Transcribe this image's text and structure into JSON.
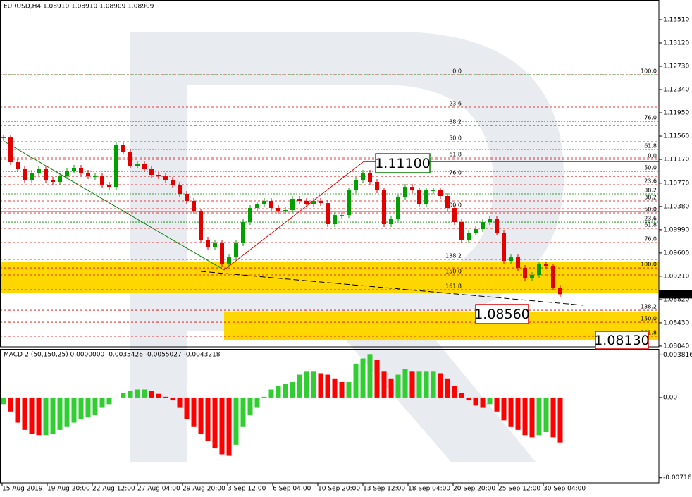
{
  "chart_data": [
    {
      "type": "candlestick",
      "title": "EURUSD,H4  1.08910 1.08910 1.08909 1.08909",
      "closes": [
        1.11536,
        1.11123,
        1.11005,
        1.10827,
        1.10946,
        1.11005,
        1.10827,
        1.10792,
        1.10886,
        1.10981,
        1.11028,
        1.10946,
        1.10886,
        1.10886,
        1.10745,
        1.10709,
        1.11418,
        1.113,
        1.11064,
        1.11099,
        1.11005,
        1.1091,
        1.10886,
        1.10827,
        1.10745,
        1.10591,
        1.10473,
        1.10296,
        1.09823,
        1.09705,
        1.09764,
        1.09409,
        1.09527,
        1.09764,
        1.10118,
        1.10355,
        1.10414,
        1.10473,
        1.10355,
        1.10296,
        1.10319,
        1.10508,
        1.10473,
        1.10414,
        1.10473,
        1.10437,
        1.10083,
        1.10236,
        1.10236,
        1.1065,
        1.10827,
        1.10946,
        1.10792,
        1.1065,
        1.10083,
        1.10177,
        1.10532,
        1.10709,
        1.1065,
        1.10414,
        1.1065,
        1.1065,
        1.10556,
        1.10355,
        1.10118,
        1.09823,
        1.09941,
        1.1,
        1.10118,
        1.10177,
        1.09941,
        1.09468,
        1.09527,
        1.0935,
        1.09173,
        1.09232,
        1.09409,
        1.09374,
        1.09019,
        1.08909
      ],
      "up_color": "#00a000",
      "down_color": "#e00000",
      "ylim": [
        1.08027,
        1.13841
      ],
      "yticks": [
        {
          "value": 1.1351,
          "label": "1.13510"
        },
        {
          "value": 1.1312,
          "label": "1.13120"
        },
        {
          "value": 1.1273,
          "label": "1.12730"
        },
        {
          "value": 1.1234,
          "label": "1.12340"
        },
        {
          "value": 1.1195,
          "label": "1.11950"
        },
        {
          "value": 1.1156,
          "label": "1.11560"
        },
        {
          "value": 1.1117,
          "label": "1.11170"
        },
        {
          "value": 1.1077,
          "label": "1.10770"
        },
        {
          "value": 1.1038,
          "label": "1.10380"
        },
        {
          "value": 1.0999,
          "label": "1.09990"
        },
        {
          "value": 1.096,
          "label": "1.09600"
        },
        {
          "value": 1.0921,
          "label": "1.09210"
        },
        {
          "value": 1.0882,
          "label": "1.08820"
        },
        {
          "value": 1.0843,
          "label": "1.08430"
        },
        {
          "value": 1.0804,
          "label": "1.08040"
        }
      ],
      "last_price": {
        "value": 1.08909,
        "label": "1.08909"
      },
      "zones": [
        {
          "low": 1.08925,
          "high": 1.09445,
          "color": "#ffd700"
        },
        {
          "low": 1.08133,
          "high": 1.08606,
          "color": "#ffd700"
        }
      ],
      "hlines": [
        {
          "price": 1.10296,
          "color": "#ffa500"
        },
        {
          "price": 1.11135,
          "color": "#1e78d2"
        }
      ],
      "fib_sets": [
        {
          "color": "#e00000",
          "levels": [
            {
              "label": "0.0",
              "price": 1.12588
            },
            {
              "label": "23.6",
              "price": 1.12045
            },
            {
              "label": "38.2",
              "price": 1.11737
            },
            {
              "label": "50.0",
              "price": 1.11466
            },
            {
              "label": "61.8",
              "price": 1.11194
            },
            {
              "label": "76.0",
              "price": 1.10886
            },
            {
              "label": "100.0",
              "price": 1.10343
            },
            {
              "label": "138.2",
              "price": 1.09492
            },
            {
              "label": "150.0",
              "price": 1.09232
            },
            {
              "label": "161.8",
              "price": 1.08984
            }
          ]
        },
        {
          "color": "#e00000",
          "levels": [
            {
              "label": "0.0",
              "price": 1.1117
            },
            {
              "label": "23.6",
              "price": 1.10745
            },
            {
              "label": "38.2",
              "price": 1.10473
            },
            {
              "label": "50.0",
              "price": 1.10272
            },
            {
              "label": "61.8",
              "price": 1.10012
            },
            {
              "label": "76.0",
              "price": 1.09776
            },
            {
              "label": "100.0",
              "price": 1.0935
            },
            {
              "label": "138.2",
              "price": 1.08641
            },
            {
              "label": "150.0",
              "price": 1.0844
            },
            {
              "label": "161.8",
              "price": 1.08204
            }
          ]
        },
        {
          "color": "#008000",
          "levels": [
            {
              "label": "100.0",
              "price": 1.12588
            },
            {
              "label": "76.0",
              "price": 1.11808
            },
            {
              "label": "61.8",
              "price": 1.11336
            },
            {
              "label": "50.0",
              "price": 1.10969
            },
            {
              "label": "38.2",
              "price": 1.10591
            },
            {
              "label": "23.6",
              "price": 1.10118
            }
          ]
        }
      ],
      "callouts": [
        {
          "label": "1.11100",
          "color": "#008000"
        },
        {
          "label": "1.08560",
          "color": "#e00000"
        },
        {
          "label": "1.08130",
          "color": "#e00000"
        }
      ]
    },
    {
      "type": "bar",
      "title": "MACD-2 (50,150,25) 0.0000000 -0.0035426 -0.0055027 -0.0043218",
      "values": [
        -0.00059,
        -0.00125,
        -0.00224,
        -0.00289,
        -0.00322,
        -0.00336,
        -0.00336,
        -0.00322,
        -0.00289,
        -0.00257,
        -0.00224,
        -0.00191,
        -0.00178,
        -0.00158,
        -0.00092,
        -0.00059,
        -7e-05,
        0.00039,
        0.00059,
        0.00072,
        0.00072,
        0.00059,
        0.00033,
        7e-05,
        -0.00026,
        -0.00092,
        -0.00191,
        -0.00257,
        -0.00322,
        -0.00388,
        -0.00454,
        -0.00507,
        -0.0052,
        -0.00421,
        -0.00257,
        -0.00158,
        -0.00092,
        7e-05,
        0.00072,
        0.00105,
        0.00125,
        0.00138,
        0.00204,
        0.00237,
        0.00237,
        0.00217,
        0.00204,
        0.00171,
        0.00138,
        0.00138,
        0.00303,
        0.00349,
        0.00388,
        0.00336,
        0.00237,
        0.00171,
        0.00204,
        0.00257,
        0.00237,
        0.00237,
        0.00237,
        0.00237,
        0.00217,
        0.00171,
        0.00105,
        0.00039,
        -0.00026,
        -0.00072,
        -0.00092,
        -0.00059,
        -0.00125,
        -0.00204,
        -0.00257,
        -0.00289,
        -0.00336,
        -0.00355,
        -0.00336,
        -0.00309,
        -0.00355,
        -0.00401
      ],
      "up_color": "#32cd32",
      "down_color": "#ff0000",
      "ylim": [
        -0.00762,
        0.00434
      ],
      "yticks": [
        0.003816,
        {
          "value": 0,
          "label": "0.00"
        },
        -0.007162
      ],
      "xtick_labels": [
        "15 Aug 2019",
        "19 Aug 20:00",
        "22 Aug 12:00",
        "27 Aug 04:00",
        "29 Aug 20:00",
        "3 Sep 12:00",
        "6 Sep 04:00",
        "10 Sep 20:00",
        "13 Sep 12:00",
        "18 Sep 04:00",
        "20 Sep 20:00",
        "25 Sep 12:00",
        "30 Sep 04:00"
      ]
    }
  ]
}
